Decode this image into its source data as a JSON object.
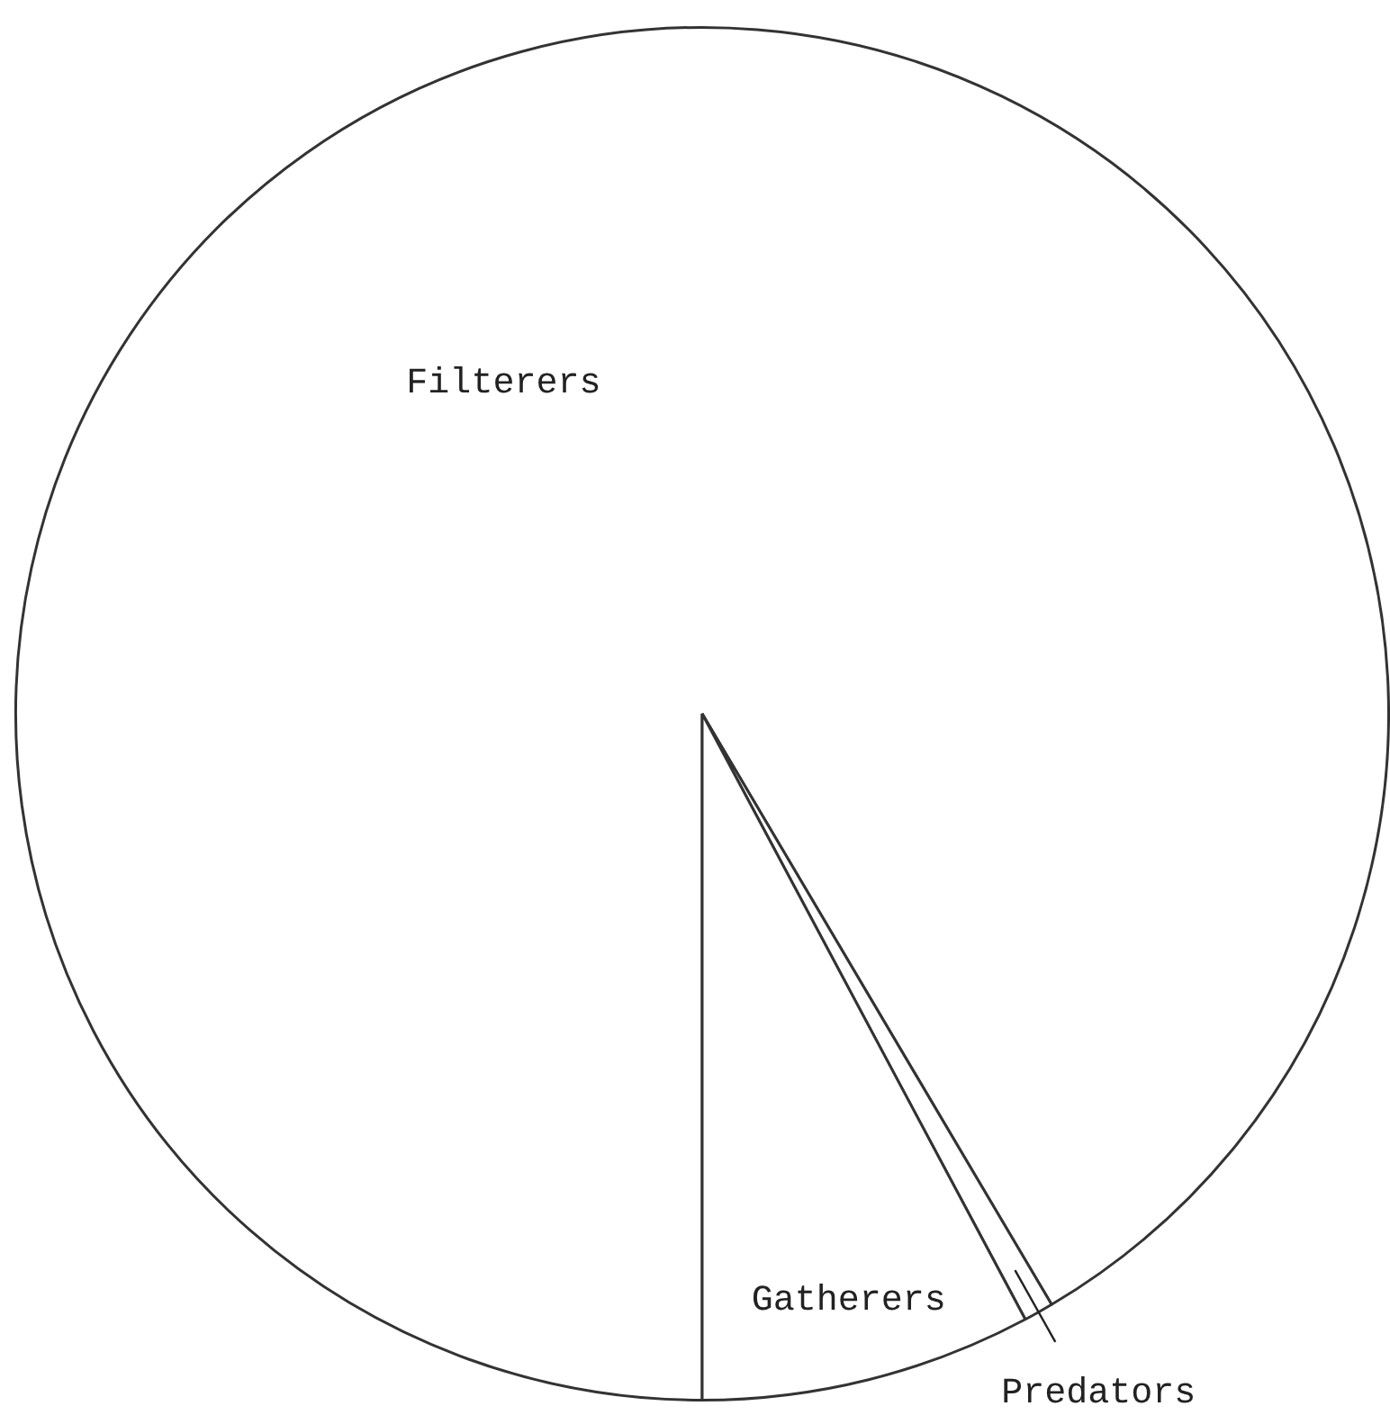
{
  "chart_data": {
    "type": "pie",
    "categories": [
      "Filterers",
      "Predators",
      "Gatherers"
    ],
    "values": [
      91.5,
      0.7,
      7.8
    ],
    "colors": [
      "#ffffff",
      "#ffffff",
      "#ffffff"
    ],
    "legend": false
  }
}
